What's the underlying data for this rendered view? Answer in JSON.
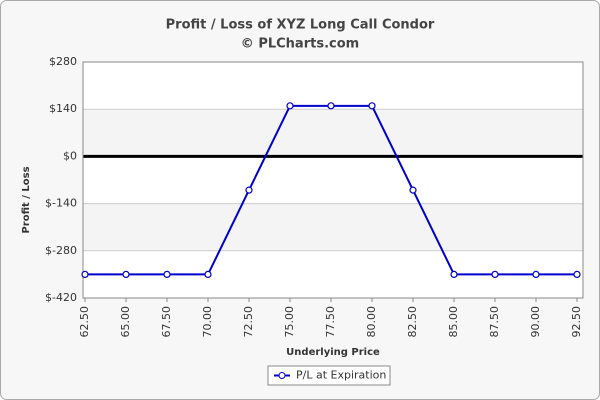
{
  "chart_data": {
    "type": "line",
    "title": "Profit / Loss of XYZ Long Call Condor",
    "subtitle": "© PLCharts.com",
    "x_label": "Underlying Price",
    "y_label": "Profit / Loss",
    "categories": [
      "62.50",
      "65.00",
      "67.50",
      "70.00",
      "72.50",
      "75.00",
      "77.50",
      "80.00",
      "82.50",
      "85.00",
      "87.50",
      "90.00",
      "92.50"
    ],
    "series": [
      {
        "name": "P/L at Expiration",
        "color": "#0000cc",
        "values": [
          -350,
          -350,
          -350,
          -350,
          -100,
          150,
          150,
          150,
          -100,
          -350,
          -350,
          -350,
          -350
        ]
      }
    ],
    "ylim": [
      -420,
      280
    ],
    "yticks": [
      {
        "value": -420,
        "label": "$-420"
      },
      {
        "value": -280,
        "label": "$-280"
      },
      {
        "value": -140,
        "label": "$-140"
      },
      {
        "value": 0,
        "label": "$0"
      },
      {
        "value": 140,
        "label": "$140"
      },
      {
        "value": 280,
        "label": "$280"
      }
    ],
    "grid": true,
    "zero_line": true,
    "legend": "bottom"
  }
}
